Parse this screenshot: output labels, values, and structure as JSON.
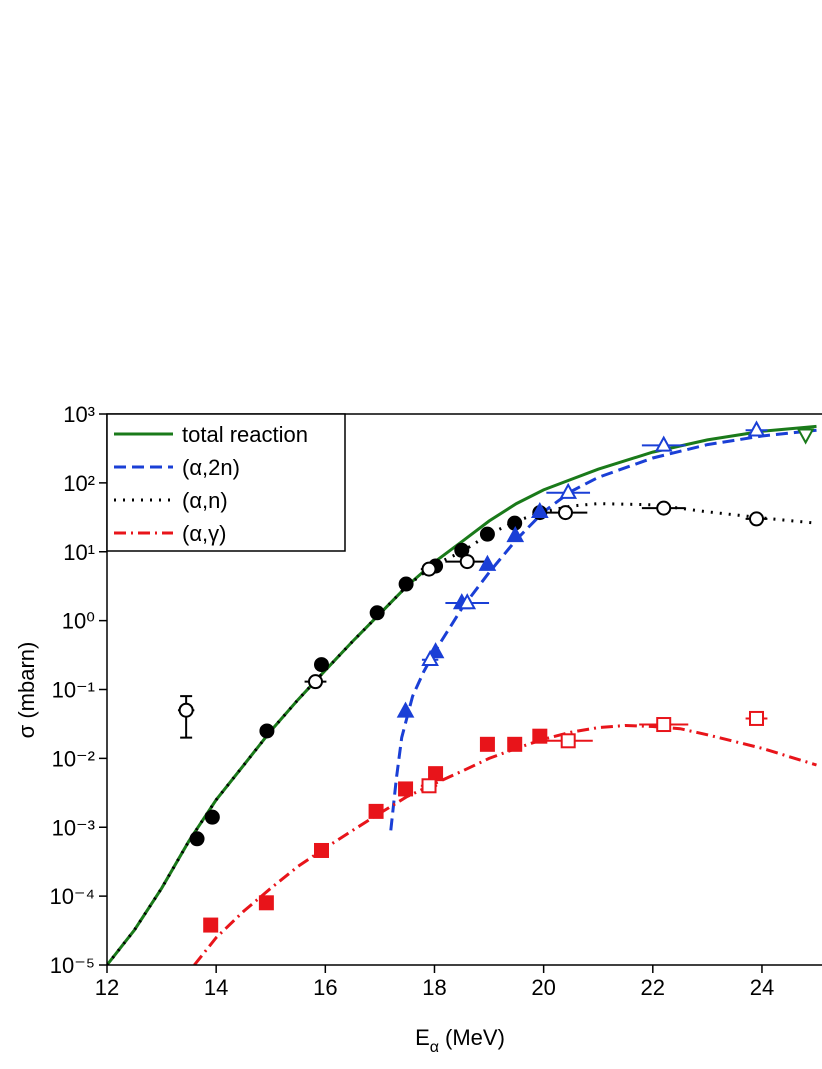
{
  "chart_data": {
    "type": "line",
    "xlabel": [
      "E",
      "α",
      "(MeV)"
    ],
    "ylabel": "σ (mbarn)",
    "xlim": [
      12,
      25.1
    ],
    "ylim": [
      1e-05,
      1000
    ],
    "log_y": true,
    "xticks": [
      12,
      14,
      16,
      18,
      20,
      22,
      24
    ],
    "yticks": [
      {
        "value": 1e-05,
        "label": "10⁻⁵"
      },
      {
        "value": 0.0001,
        "label": "10⁻⁴"
      },
      {
        "value": 0.001,
        "label": "10⁻³"
      },
      {
        "value": 0.01,
        "label": "10⁻²"
      },
      {
        "value": 0.1,
        "label": "10⁻¹"
      },
      {
        "value": 1,
        "label": "10⁰"
      },
      {
        "value": 10,
        "label": "10¹"
      },
      {
        "value": 100,
        "label": "10²"
      },
      {
        "value": 1000,
        "label": "10³"
      }
    ],
    "legend": "upper-left",
    "series": [
      {
        "name": "total reaction",
        "color": "#1a7a1a",
        "style": "solid",
        "x": [
          12,
          12.5,
          13,
          13.5,
          14,
          14.5,
          15,
          15.5,
          16,
          16.5,
          17,
          17.5,
          18,
          18.5,
          19,
          19.5,
          20,
          20.5,
          21,
          22,
          23,
          24,
          25
        ],
        "values": [
          1e-05,
          3.2e-05,
          0.00013,
          0.00063,
          0.0025,
          0.0079,
          0.025,
          0.071,
          0.19,
          0.5,
          1.26,
          3.2,
          7.1,
          14,
          28,
          50,
          79,
          112,
          158,
          280,
          420,
          560,
          660
        ]
      },
      {
        "name": "(α,2n)",
        "color": "#1a3fd6",
        "style": "dash",
        "x": [
          17.2,
          17.3,
          17.4,
          17.6,
          17.8,
          18,
          18.5,
          19,
          19.5,
          20,
          20.5,
          21,
          22,
          23,
          24,
          25
        ],
        "values": [
          0.0009,
          0.005,
          0.02,
          0.08,
          0.18,
          0.35,
          1.5,
          5,
          15,
          38,
          75,
          120,
          230,
          360,
          480,
          580
        ]
      },
      {
        "name": "(α,n)",
        "color": "#000000",
        "style": "dot",
        "x": [
          12,
          12.5,
          13,
          13.5,
          14,
          14.5,
          15,
          15.5,
          16,
          16.5,
          17,
          17.5,
          18,
          18.5,
          19,
          19.5,
          20,
          20.5,
          21,
          22,
          23,
          24,
          25
        ],
        "values": [
          1e-05,
          3.2e-05,
          0.00013,
          0.00063,
          0.0025,
          0.0079,
          0.025,
          0.071,
          0.19,
          0.5,
          1.26,
          3.2,
          6.5,
          10,
          18,
          28,
          38,
          46,
          50,
          48,
          38,
          31,
          26
        ]
      },
      {
        "name": "(α,γ)",
        "color": "#e8141a",
        "style": "dashdot",
        "x": [
          13.6,
          14,
          14.5,
          15,
          15.5,
          16,
          16.5,
          17,
          17.5,
          18,
          18.5,
          19,
          19.5,
          20,
          20.5,
          21,
          21.5,
          22,
          22.5,
          23,
          24,
          25
        ],
        "values": [
          1e-05,
          2.5e-05,
          6e-05,
          0.00013,
          0.00027,
          0.0005,
          0.0009,
          0.0016,
          0.0028,
          0.0043,
          0.0065,
          0.01,
          0.014,
          0.019,
          0.024,
          0.028,
          0.03,
          0.029,
          0.027,
          0.022,
          0.014,
          0.008
        ]
      }
    ],
    "points": [
      {
        "marker": "circle",
        "color": "#000000",
        "filled": true,
        "x": [
          13.65,
          13.93,
          14.93,
          15.93,
          16.95,
          17.48,
          18.02,
          18.5,
          18.97,
          19.47,
          19.93
        ],
        "values": [
          0.00068,
          0.0014,
          0.025,
          0.23,
          1.3,
          3.4,
          6.2,
          10.5,
          18,
          26,
          37
        ]
      },
      {
        "marker": "circle",
        "color": "#000000",
        "filled": false,
        "x": [
          13.45,
          15.82,
          17.9,
          18.6,
          20.4,
          22.2,
          23.9
        ],
        "values": [
          0.05,
          0.13,
          5.6,
          7.2,
          37,
          43,
          30
        ],
        "xerr": [
          0.15,
          0.2,
          0.15,
          0.4,
          0.4,
          0.4,
          0.2
        ],
        "yerr": [
          0.03,
          null,
          null,
          null,
          null,
          null,
          null
        ]
      },
      {
        "marker": "triangle",
        "color": "#1a3fd6",
        "filled": true,
        "x": [
          17.47,
          18.02,
          18.5,
          18.97,
          19.48,
          19.93
        ],
        "values": [
          0.048,
          0.35,
          1.8,
          6.5,
          17,
          38
        ]
      },
      {
        "marker": "triangle",
        "color": "#1a3fd6",
        "filled": false,
        "x": [
          17.92,
          18.6,
          20.45,
          22.2,
          23.9
        ],
        "values": [
          0.27,
          1.8,
          72,
          350,
          580
        ],
        "xerr": [
          0.15,
          0.4,
          0.4,
          0.4,
          0.2
        ]
      },
      {
        "marker": "square",
        "color": "#e8141a",
        "filled": true,
        "x": [
          13.9,
          14.92,
          15.93,
          16.93,
          17.47,
          18.02,
          18.97,
          19.47,
          19.93
        ],
        "values": [
          3.8e-05,
          8e-05,
          0.00046,
          0.0017,
          0.0036,
          0.006,
          0.016,
          0.016,
          0.021
        ]
      },
      {
        "marker": "square",
        "color": "#e8141a",
        "filled": false,
        "x": [
          17.9,
          20.45,
          22.2,
          23.9
        ],
        "values": [
          0.004,
          0.018,
          0.031,
          0.038
        ],
        "xerr": [
          0.15,
          0.45,
          0.45,
          0.2
        ]
      },
      {
        "marker": "down-triangle",
        "color": "#1a7a1a",
        "filled": false,
        "x": [
          24.8
        ],
        "values": [
          500
        ]
      }
    ]
  }
}
